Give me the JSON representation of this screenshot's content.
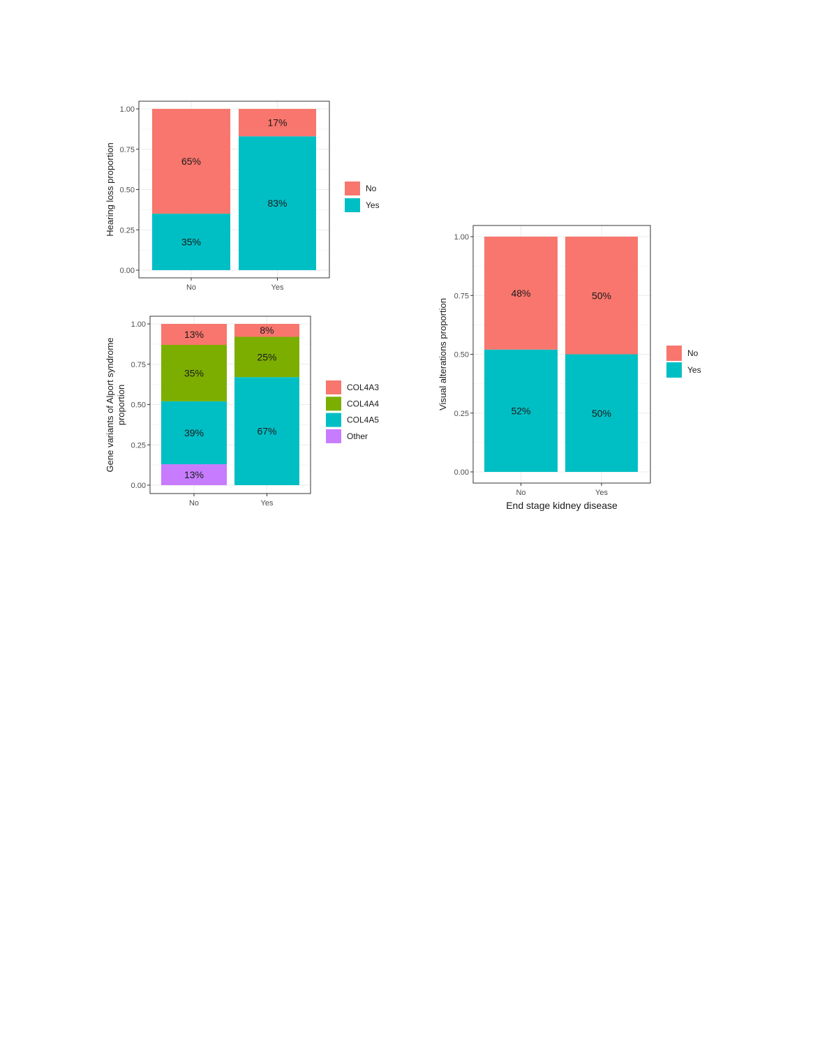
{
  "chart_data": [
    {
      "type": "bar",
      "stacked": true,
      "categories": [
        "No",
        "Yes"
      ],
      "series": [
        {
          "name": "No",
          "values": [
            0.65,
            0.17
          ],
          "labels": [
            "65%",
            "17%"
          ]
        },
        {
          "name": "Yes",
          "values": [
            0.35,
            0.83
          ],
          "labels": [
            "35%",
            "83%"
          ]
        }
      ],
      "ylabel": "Hearing loss proportion",
      "xlabel": "",
      "ylim": [
        0,
        1
      ],
      "yticks": [
        "0.00",
        "0.25",
        "0.50",
        "0.75",
        "1.00"
      ],
      "grid": true,
      "legend": "right",
      "colors": [
        "#F8766D",
        "#00BFC4"
      ]
    },
    {
      "type": "bar",
      "stacked": true,
      "categories": [
        "No",
        "Yes"
      ],
      "series": [
        {
          "name": "COL4A3",
          "values": [
            0.13,
            0.08
          ],
          "labels": [
            "13%",
            "8%"
          ]
        },
        {
          "name": "COL4A4",
          "values": [
            0.35,
            0.25
          ],
          "labels": [
            "35%",
            "25%"
          ]
        },
        {
          "name": "COL4A5",
          "values": [
            0.39,
            0.67
          ],
          "labels": [
            "39%",
            "67%"
          ]
        },
        {
          "name": "Other",
          "values": [
            0.13,
            0.0
          ],
          "labels": [
            "13%",
            ""
          ]
        }
      ],
      "ylabel": [
        "Gene variants of Alport syndrome",
        "proportion"
      ],
      "xlabel": "",
      "ylim": [
        0,
        1
      ],
      "yticks": [
        "0.00",
        "0.25",
        "0.50",
        "0.75",
        "1.00"
      ],
      "grid": true,
      "legend": "right",
      "colors": [
        "#F8766D",
        "#7CAE00",
        "#00BFC4",
        "#C77CFF"
      ]
    },
    {
      "type": "bar",
      "stacked": true,
      "categories": [
        "No",
        "Yes"
      ],
      "series": [
        {
          "name": "No",
          "values": [
            0.48,
            0.5
          ],
          "labels": [
            "48%",
            "50%"
          ]
        },
        {
          "name": "Yes",
          "values": [
            0.52,
            0.5
          ],
          "labels": [
            "52%",
            "50%"
          ]
        }
      ],
      "ylabel": "Visual alterations proportion",
      "xlabel": "End stage kidney disease",
      "ylim": [
        0,
        1
      ],
      "yticks": [
        "0.00",
        "0.25",
        "0.50",
        "0.75",
        "1.00"
      ],
      "grid": true,
      "legend": "right",
      "colors": [
        "#F8766D",
        "#00BFC4"
      ]
    }
  ]
}
